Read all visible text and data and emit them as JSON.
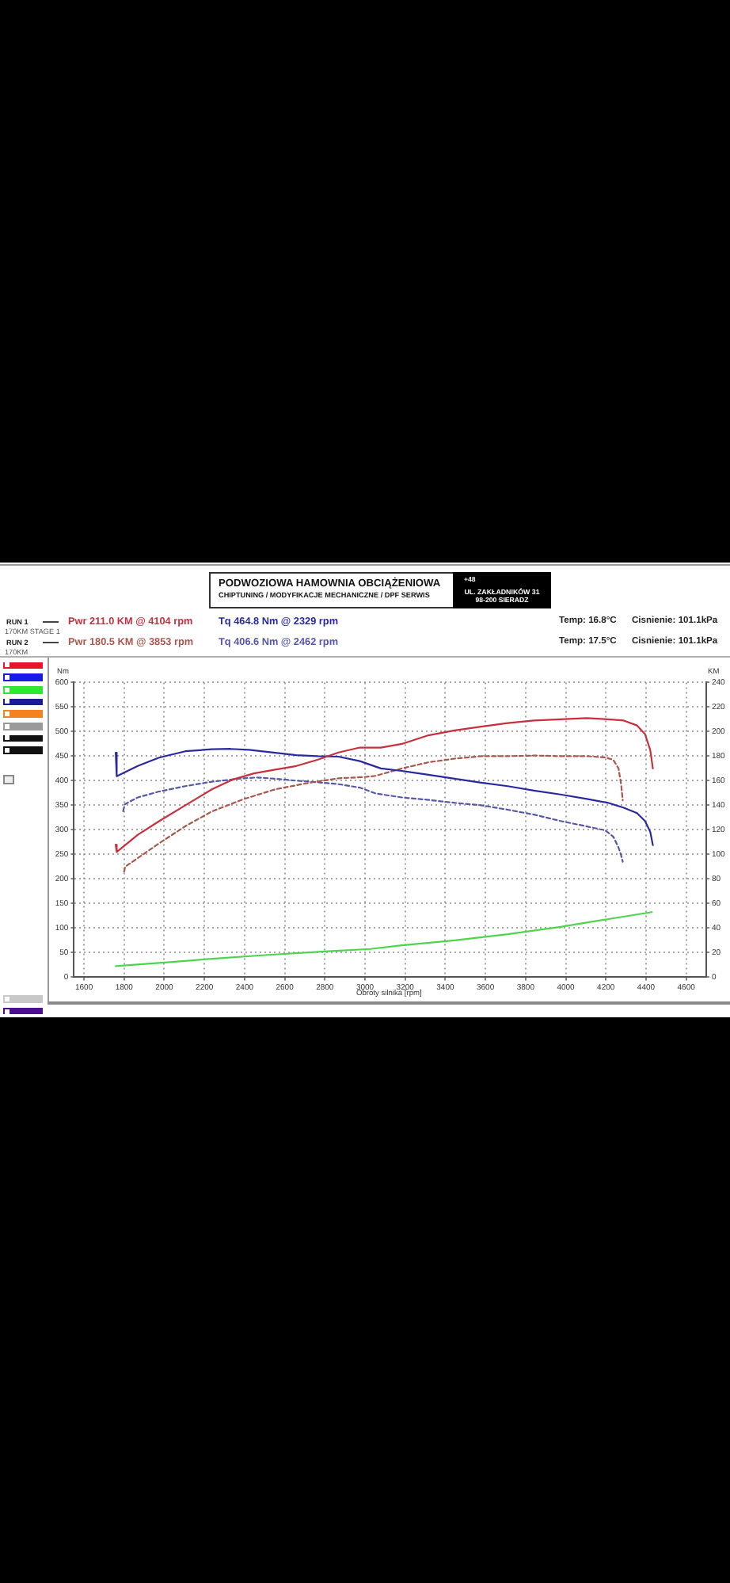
{
  "chart_data": {
    "type": "line",
    "xlabel": "Obroty silnika [rpm]",
    "ylabel": "Nm",
    "y2label": "KM",
    "xlim": [
      1550,
      4700
    ],
    "xticks": [
      1600,
      1800,
      2000,
      2200,
      2400,
      2600,
      2800,
      3000,
      3200,
      3400,
      3600,
      3800,
      4000,
      4200,
      4400,
      4600
    ],
    "ylim": [
      0,
      600
    ],
    "yticks": [
      0,
      50,
      100,
      150,
      200,
      250,
      300,
      350,
      400,
      450,
      500,
      550,
      600
    ],
    "y2lim": [
      0,
      240
    ],
    "y2ticks": [
      0,
      20,
      40,
      60,
      80,
      100,
      120,
      140,
      160,
      180,
      200,
      220,
      240
    ],
    "grid": true,
    "marker": "none",
    "series": [
      {
        "name": "Pwr  211.0 KM @ 4104 rpm",
        "color": "#c8303e",
        "axis": "y2",
        "line_style": "solid",
        "x": [
          1758,
          1763,
          1868,
          1974,
          2105,
          2237,
          2342,
          2447,
          2553,
          2658,
          2763,
          2868,
          2974,
          3079,
          3184,
          3316,
          3447,
          3579,
          3711,
          3842,
          3974,
          4104,
          4211,
          4289,
          4355,
          4395,
          4421,
          4434
        ],
        "values": [
          108,
          102,
          116,
          127,
          140,
          153,
          161,
          166,
          169,
          172,
          177,
          183,
          187,
          187,
          190,
          197,
          201,
          204,
          207,
          209,
          210,
          211.0,
          210,
          209,
          205,
          198,
          185,
          170
        ]
      },
      {
        "name": "Tq 464.8 Nm @ 2329 rpm",
        "color": "#2a2aa0",
        "axis": "y",
        "line_style": "solid",
        "x": [
          1758,
          1763,
          1868,
          1974,
          2105,
          2237,
          2329,
          2421,
          2553,
          2658,
          2763,
          2868,
          2974,
          3079,
          3184,
          3316,
          3447,
          3579,
          3711,
          3842,
          3974,
          4105,
          4211,
          4289,
          4355,
          4395,
          4421,
          4434
        ],
        "values": [
          457,
          409,
          430,
          447,
          460,
          464,
          464.8,
          463,
          457,
          452,
          450,
          449,
          440,
          425,
          420,
          412,
          404,
          396,
          389,
          380,
          372,
          363,
          355,
          345,
          334,
          318,
          296,
          269
        ]
      },
      {
        "name": "Pwr  180.5 KM @ 3853 rpm",
        "color": "#a8584e",
        "axis": "y2",
        "line_style": "dashed",
        "x": [
          1800,
          1805,
          1868,
          1974,
          2105,
          2237,
          2395,
          2553,
          2711,
          2868,
          3000,
          3053,
          3184,
          3316,
          3447,
          3579,
          3711,
          3853,
          3974,
          4105,
          4197,
          4237,
          4263,
          4276,
          4284
        ],
        "values": [
          86,
          90,
          97,
          109,
          123,
          135,
          145,
          153,
          158,
          162,
          163,
          164,
          170,
          175,
          178,
          180,
          180,
          180.5,
          180,
          180,
          179,
          177,
          170,
          157,
          144
        ]
      },
      {
        "name": "Tq 406.6 Nm @ 2462 rpm",
        "color": "#5858aa",
        "axis": "y",
        "line_style": "dashed",
        "x": [
          1795,
          1803,
          1868,
          1974,
          2105,
          2237,
          2395,
          2462,
          2553,
          2658,
          2763,
          2868,
          2974,
          3053,
          3184,
          3316,
          3447,
          3579,
          3711,
          3842,
          3974,
          4105,
          4197,
          4237,
          4263,
          4276,
          4284
        ],
        "values": [
          338,
          352,
          366,
          378,
          389,
          398,
          405,
          406.6,
          404,
          400,
          397,
          393,
          386,
          374,
          366,
          361,
          355,
          350,
          341,
          331,
          318,
          307,
          299,
          286,
          264,
          248,
          235
        ]
      },
      {
        "color": "#4fd44f",
        "axis": "y2",
        "line_style": "solid",
        "x": [
          1758,
          2000,
          2237,
          2500,
          2800,
          3026,
          3184,
          3447,
          3711,
          3974,
          4237,
          4429
        ],
        "values": [
          9,
          12,
          15,
          18,
          21,
          23,
          26,
          30,
          35,
          41,
          48,
          53
        ]
      }
    ],
    "annotations": [
      "PODWOZIOWA HAMOWNIA OBCIĄŻENIOWA",
      "CHIPTUNING / MODYFIKACJE MECHANICZNE / DPF SERWIS",
      "+48",
      "UL. ZAKŁADNIKÓW 31",
      "98-200 SIERADZ",
      "RUN 1",
      "170KM STAGE 1",
      "RUN 2",
      "170KM",
      "Temp: 16.8°C",
      "Cisnienie: 101.1kPa",
      "Temp: 17.5°C",
      "Cisnienie: 101.1kPa"
    ]
  }
}
